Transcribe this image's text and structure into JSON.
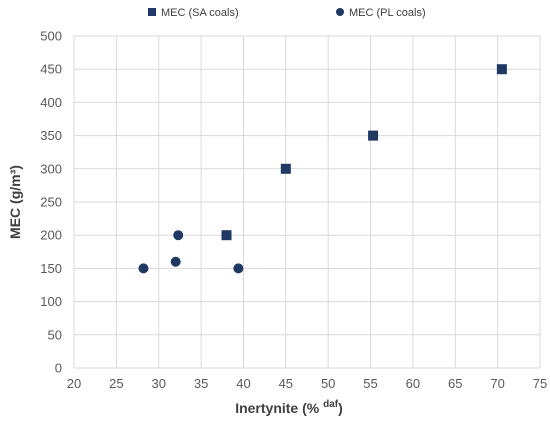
{
  "chart_data": {
    "type": "scatter",
    "xlabel": "Inertynite (% daf)",
    "xlabel_parts": {
      "main": "Inertynite (% ",
      "sup": "daf",
      "end": ")"
    },
    "ylabel": "MEC (g/m³)",
    "xlim": [
      20,
      75
    ],
    "ylim": [
      0,
      500
    ],
    "x_ticks": [
      20,
      25,
      30,
      35,
      40,
      45,
      50,
      55,
      60,
      65,
      70,
      75
    ],
    "y_ticks": [
      0,
      50,
      100,
      150,
      200,
      250,
      300,
      350,
      400,
      450,
      500
    ],
    "grid": true,
    "legend_position": "top",
    "marker_color": "#203864",
    "series": [
      {
        "name": "MEC (SA coals)",
        "marker": "square",
        "points": [
          {
            "x": 38.0,
            "y": 200
          },
          {
            "x": 45.0,
            "y": 300
          },
          {
            "x": 55.3,
            "y": 350
          },
          {
            "x": 70.5,
            "y": 450
          }
        ]
      },
      {
        "name": "MEC (PL coals)",
        "marker": "circle",
        "points": [
          {
            "x": 28.2,
            "y": 150
          },
          {
            "x": 32.0,
            "y": 160
          },
          {
            "x": 32.3,
            "y": 200
          },
          {
            "x": 39.4,
            "y": 150
          }
        ]
      }
    ]
  }
}
